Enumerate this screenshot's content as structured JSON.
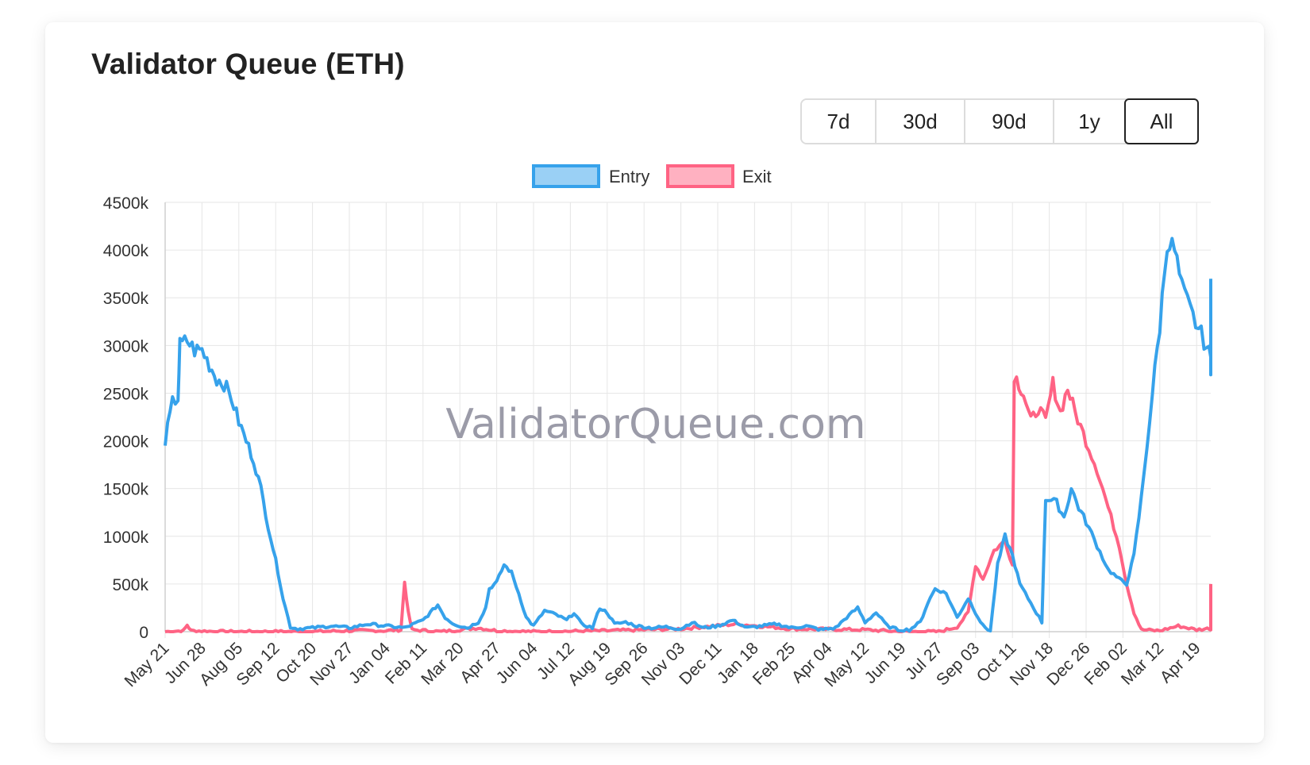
{
  "card": {
    "title": "Validator Queue (ETH)"
  },
  "range_buttons": [
    {
      "label": "7d",
      "active": false
    },
    {
      "label": "30d",
      "active": false
    },
    {
      "label": "90d",
      "active": false
    },
    {
      "label": "1y",
      "active": false
    },
    {
      "label": "All",
      "active": true
    }
  ],
  "watermark": "ValidatorQueue.com",
  "chart_data": {
    "type": "line",
    "title": "",
    "xlabel": "",
    "ylabel": "",
    "ylim": [
      0,
      4500000
    ],
    "y_ticks": [
      {
        "value": 0,
        "label": "0"
      },
      {
        "value": 500000,
        "label": "500k"
      },
      {
        "value": 1000000,
        "label": "1000k"
      },
      {
        "value": 1500000,
        "label": "1500k"
      },
      {
        "value": 2000000,
        "label": "2000k"
      },
      {
        "value": 2500000,
        "label": "2500k"
      },
      {
        "value": 3000000,
        "label": "3000k"
      },
      {
        "value": 3500000,
        "label": "3500k"
      },
      {
        "value": 4000000,
        "label": "4000k"
      },
      {
        "value": 4500000,
        "label": "4500k"
      }
    ],
    "x_ticks": [
      "May 21",
      "Jun 28",
      "Aug 05",
      "Sep 12",
      "Oct 20",
      "Nov 27",
      "Jan 04",
      "Feb 11",
      "Mar 20",
      "Apr 27",
      "Jun 04",
      "Jul 12",
      "Aug 19",
      "Sep 26",
      "Nov 03",
      "Dec 11",
      "Jan 18",
      "Feb 25",
      "Apr 04",
      "May 12",
      "Jun 19",
      "Jul 27",
      "Sep 03",
      "Oct 11",
      "Nov 18",
      "Dec 26",
      "Feb 02",
      "Mar 12",
      "Apr 19"
    ],
    "x_range": [
      0,
      28.4
    ],
    "grid": true,
    "legend_position": "top",
    "series": [
      {
        "name": "Entry",
        "color": "#36a2eb",
        "fill": "#9ad0f5",
        "points": [
          [
            0,
            2000000
          ],
          [
            0.2,
            2400000
          ],
          [
            0.35,
            2450000
          ],
          [
            0.4,
            3000000
          ],
          [
            0.6,
            3050000
          ],
          [
            0.8,
            2950000
          ],
          [
            1.0,
            2950000
          ],
          [
            1.2,
            2800000
          ],
          [
            1.4,
            2650000
          ],
          [
            1.6,
            2600000
          ],
          [
            1.8,
            2450000
          ],
          [
            2.0,
            2200000
          ],
          [
            2.2,
            2000000
          ],
          [
            2.4,
            1800000
          ],
          [
            2.6,
            1500000
          ],
          [
            2.8,
            1100000
          ],
          [
            3.0,
            750000
          ],
          [
            3.2,
            350000
          ],
          [
            3.4,
            50000
          ],
          [
            3.6,
            30000
          ],
          [
            4.0,
            40000
          ],
          [
            4.5,
            60000
          ],
          [
            5.0,
            40000
          ],
          [
            5.5,
            80000
          ],
          [
            6.0,
            60000
          ],
          [
            6.5,
            40000
          ],
          [
            7.0,
            120000
          ],
          [
            7.2,
            200000
          ],
          [
            7.4,
            280000
          ],
          [
            7.6,
            150000
          ],
          [
            7.8,
            90000
          ],
          [
            8.0,
            60000
          ],
          [
            8.2,
            40000
          ],
          [
            8.5,
            100000
          ],
          [
            8.7,
            250000
          ],
          [
            8.8,
            450000
          ],
          [
            9.0,
            520000
          ],
          [
            9.2,
            700000
          ],
          [
            9.4,
            620000
          ],
          [
            9.6,
            400000
          ],
          [
            9.8,
            150000
          ],
          [
            10.0,
            60000
          ],
          [
            10.3,
            220000
          ],
          [
            10.6,
            180000
          ],
          [
            10.9,
            120000
          ],
          [
            11.1,
            200000
          ],
          [
            11.3,
            80000
          ],
          [
            11.6,
            40000
          ],
          [
            11.8,
            250000
          ],
          [
            12.0,
            200000
          ],
          [
            12.2,
            80000
          ],
          [
            12.5,
            100000
          ],
          [
            12.8,
            60000
          ],
          [
            13.2,
            40000
          ],
          [
            13.6,
            50000
          ],
          [
            14.0,
            30000
          ],
          [
            14.3,
            100000
          ],
          [
            14.6,
            40000
          ],
          [
            15.0,
            60000
          ],
          [
            15.4,
            120000
          ],
          [
            15.8,
            40000
          ],
          [
            16.2,
            60000
          ],
          [
            16.6,
            80000
          ],
          [
            17.0,
            40000
          ],
          [
            17.4,
            60000
          ],
          [
            17.8,
            20000
          ],
          [
            18.2,
            40000
          ],
          [
            18.5,
            150000
          ],
          [
            18.8,
            250000
          ],
          [
            19.0,
            100000
          ],
          [
            19.3,
            200000
          ],
          [
            19.6,
            60000
          ],
          [
            19.9,
            20000
          ],
          [
            20.2,
            20000
          ],
          [
            20.5,
            100000
          ],
          [
            20.7,
            300000
          ],
          [
            20.9,
            450000
          ],
          [
            21.2,
            400000
          ],
          [
            21.5,
            150000
          ],
          [
            21.8,
            350000
          ],
          [
            22.0,
            200000
          ],
          [
            22.2,
            60000
          ],
          [
            22.4,
            10000
          ],
          [
            22.6,
            700000
          ],
          [
            22.8,
            1000000
          ],
          [
            23.0,
            800000
          ],
          [
            23.2,
            500000
          ],
          [
            23.5,
            300000
          ],
          [
            23.8,
            100000
          ],
          [
            23.9,
            1400000
          ],
          [
            24.2,
            1350000
          ],
          [
            24.4,
            1200000
          ],
          [
            24.6,
            1500000
          ],
          [
            24.8,
            1300000
          ],
          [
            25.0,
            1150000
          ],
          [
            25.3,
            900000
          ],
          [
            25.6,
            650000
          ],
          [
            25.9,
            550000
          ],
          [
            26.1,
            500000
          ],
          [
            26.3,
            800000
          ],
          [
            26.5,
            1400000
          ],
          [
            26.8,
            2500000
          ],
          [
            27.0,
            3200000
          ],
          [
            27.2,
            4100000
          ],
          [
            27.4,
            4000000
          ],
          [
            27.6,
            3600000
          ],
          [
            27.9,
            3300000
          ],
          [
            28.2,
            3050000
          ],
          [
            28.4,
            2850000
          ],
          [
            28.6,
            2900000
          ],
          [
            28.8,
            2750000
          ],
          [
            29.0,
            2850000
          ],
          [
            29.2,
            2750000
          ],
          [
            29.4,
            3000000
          ],
          [
            29.5,
            3700000
          ]
        ]
      },
      {
        "name": "Exit",
        "color": "#ff6384",
        "fill": "#ffb1c1",
        "points": [
          [
            0,
            0
          ],
          [
            0.5,
            10000
          ],
          [
            0.6,
            70000
          ],
          [
            0.7,
            10000
          ],
          [
            1.5,
            0
          ],
          [
            3.0,
            0
          ],
          [
            4.0,
            0
          ],
          [
            5.0,
            10000
          ],
          [
            6.0,
            10000
          ],
          [
            6.4,
            20000
          ],
          [
            6.5,
            520000
          ],
          [
            6.6,
            200000
          ],
          [
            6.7,
            20000
          ],
          [
            7.5,
            0
          ],
          [
            8.0,
            20000
          ],
          [
            8.5,
            40000
          ],
          [
            9.0,
            10000
          ],
          [
            10.0,
            0
          ],
          [
            12.0,
            10000
          ],
          [
            14.0,
            30000
          ],
          [
            15.5,
            80000
          ],
          [
            17.0,
            30000
          ],
          [
            19.0,
            20000
          ],
          [
            20.0,
            0
          ],
          [
            21.0,
            0
          ],
          [
            21.5,
            50000
          ],
          [
            21.8,
            200000
          ],
          [
            22.0,
            700000
          ],
          [
            22.2,
            550000
          ],
          [
            22.5,
            850000
          ],
          [
            22.8,
            950000
          ],
          [
            23.0,
            700000
          ],
          [
            23.05,
            2700000
          ],
          [
            23.3,
            2500000
          ],
          [
            23.5,
            2200000
          ],
          [
            23.7,
            2350000
          ],
          [
            23.9,
            2200000
          ],
          [
            24.1,
            2600000
          ],
          [
            24.3,
            2300000
          ],
          [
            24.5,
            2550000
          ],
          [
            24.7,
            2300000
          ],
          [
            25.0,
            2000000
          ],
          [
            25.3,
            1700000
          ],
          [
            25.6,
            1300000
          ],
          [
            25.9,
            900000
          ],
          [
            26.1,
            500000
          ],
          [
            26.3,
            200000
          ],
          [
            26.5,
            20000
          ],
          [
            27.0,
            10000
          ],
          [
            27.5,
            60000
          ],
          [
            28.0,
            20000
          ],
          [
            28.5,
            40000
          ],
          [
            29.0,
            30000
          ],
          [
            29.3,
            300000
          ],
          [
            29.5,
            500000
          ]
        ]
      }
    ]
  }
}
